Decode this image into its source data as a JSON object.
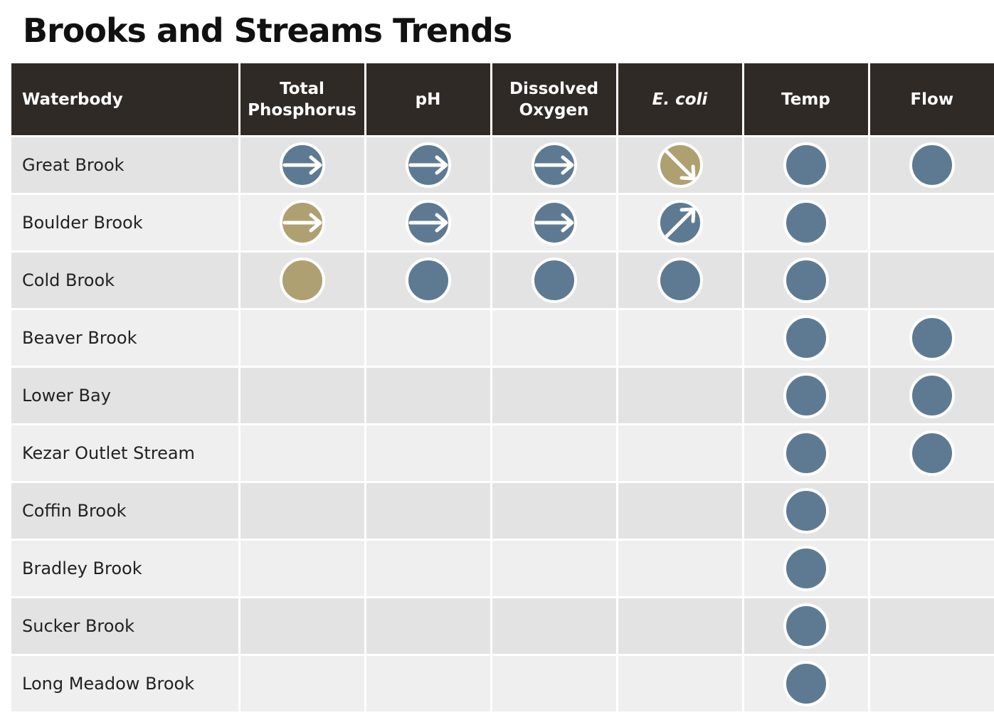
{
  "title": "Brooks and Streams Trends",
  "colors": {
    "header_bg": "#302a26",
    "header_text": "#ffffff",
    "row_odd": "#e3e3e3",
    "row_even": "#efefef",
    "blue": "#5e7a93",
    "tan": "#afa071"
  },
  "columns": [
    "Waterbody",
    "Total Phosphorus",
    "pH",
    "Dissolved Oxygen",
    "E. coli",
    "Temp",
    "Flow"
  ],
  "chart_data": {
    "type": "table",
    "title": "Brooks and Streams Trends",
    "columns": [
      "Waterbody",
      "Total Phosphorus",
      "pH",
      "Dissolved Oxygen",
      "E. coli",
      "Temp",
      "Flow"
    ],
    "rows": [
      {
        "waterbody": "Great Brook",
        "cells": [
          {
            "color": "blue",
            "icon": "arrow-right"
          },
          {
            "color": "blue",
            "icon": "arrow-right"
          },
          {
            "color": "blue",
            "icon": "arrow-right"
          },
          {
            "color": "tan",
            "icon": "arrow-down-right"
          },
          {
            "color": "blue",
            "icon": "none"
          },
          {
            "color": "blue",
            "icon": "none"
          }
        ]
      },
      {
        "waterbody": "Boulder Brook",
        "cells": [
          {
            "color": "tan",
            "icon": "arrow-right"
          },
          {
            "color": "blue",
            "icon": "arrow-right"
          },
          {
            "color": "blue",
            "icon": "arrow-right"
          },
          {
            "color": "blue",
            "icon": "arrow-up-right"
          },
          {
            "color": "blue",
            "icon": "none"
          },
          null
        ]
      },
      {
        "waterbody": "Cold Brook",
        "cells": [
          {
            "color": "tan",
            "icon": "none"
          },
          {
            "color": "blue",
            "icon": "none"
          },
          {
            "color": "blue",
            "icon": "none"
          },
          {
            "color": "blue",
            "icon": "none"
          },
          {
            "color": "blue",
            "icon": "none"
          },
          null
        ]
      },
      {
        "waterbody": "Beaver Brook",
        "cells": [
          null,
          null,
          null,
          null,
          {
            "color": "blue",
            "icon": "none"
          },
          {
            "color": "blue",
            "icon": "none"
          }
        ]
      },
      {
        "waterbody": "Lower Bay",
        "cells": [
          null,
          null,
          null,
          null,
          {
            "color": "blue",
            "icon": "none"
          },
          {
            "color": "blue",
            "icon": "none"
          }
        ]
      },
      {
        "waterbody": "Kezar Outlet Stream",
        "cells": [
          null,
          null,
          null,
          null,
          {
            "color": "blue",
            "icon": "none"
          },
          {
            "color": "blue",
            "icon": "none"
          }
        ]
      },
      {
        "waterbody": "Coffin Brook",
        "cells": [
          null,
          null,
          null,
          null,
          {
            "color": "blue",
            "icon": "none"
          },
          null
        ]
      },
      {
        "waterbody": "Bradley Brook",
        "cells": [
          null,
          null,
          null,
          null,
          {
            "color": "blue",
            "icon": "none"
          },
          null
        ]
      },
      {
        "waterbody": "Sucker Brook",
        "cells": [
          null,
          null,
          null,
          null,
          {
            "color": "blue",
            "icon": "none"
          },
          null
        ]
      },
      {
        "waterbody": "Long Meadow Brook",
        "cells": [
          null,
          null,
          null,
          null,
          {
            "color": "blue",
            "icon": "none"
          },
          null
        ]
      }
    ]
  }
}
